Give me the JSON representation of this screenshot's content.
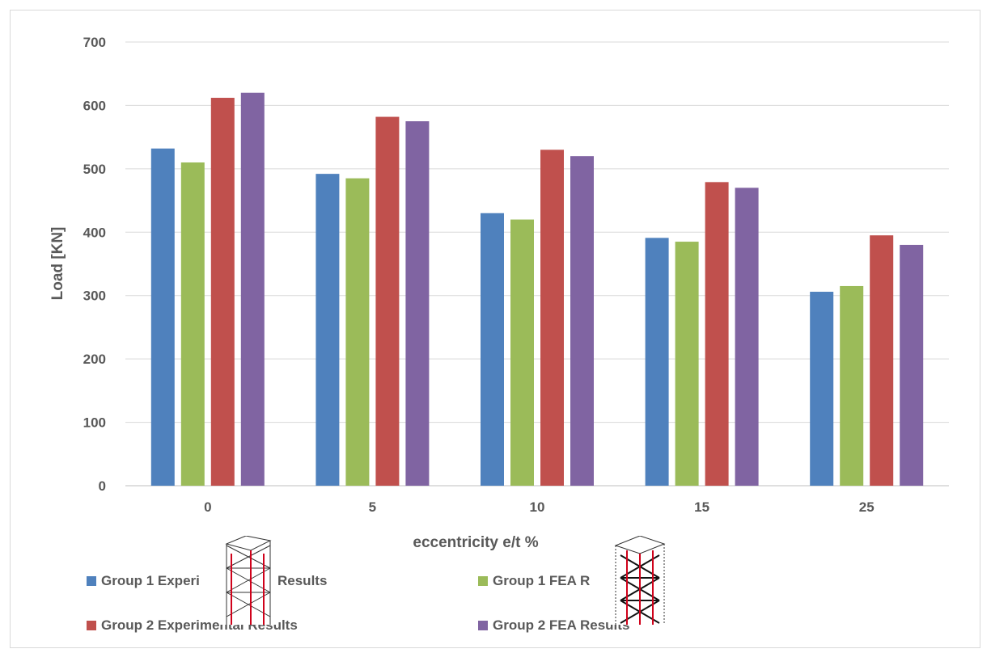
{
  "chart_data": {
    "type": "bar",
    "title": "",
    "xlabel": "eccentricity e/t %",
    "ylabel": "Load [KN]",
    "ylim": [
      0,
      700
    ],
    "yticks": [
      0,
      100,
      200,
      300,
      400,
      500,
      600,
      700
    ],
    "grid": true,
    "legend_position": "bottom",
    "categories": [
      "0",
      "5",
      "10",
      "15",
      "25"
    ],
    "series": [
      {
        "name": "Group 1 Experimental Results",
        "display_label": "Group 1 Experi",
        "display_suffix": "Results",
        "color": "#4f81bd",
        "values": [
          532,
          492,
          430,
          391,
          306
        ]
      },
      {
        "name": "Group 1 FEA Results",
        "display_label": "Group 1 FEA R",
        "color": "#9bbb59",
        "values": [
          510,
          485,
          420,
          385,
          315
        ]
      },
      {
        "name": "Group 2 Experimental Results",
        "display_label": "Group 2 Experimental Results",
        "color": "#c0504d",
        "values": [
          612,
          582,
          530,
          479,
          395
        ]
      },
      {
        "name": "Group 2 FEA Results",
        "display_label": "Group 2 FEA Results",
        "color": "#8064a2",
        "values": [
          620,
          575,
          520,
          470,
          380
        ]
      }
    ]
  }
}
